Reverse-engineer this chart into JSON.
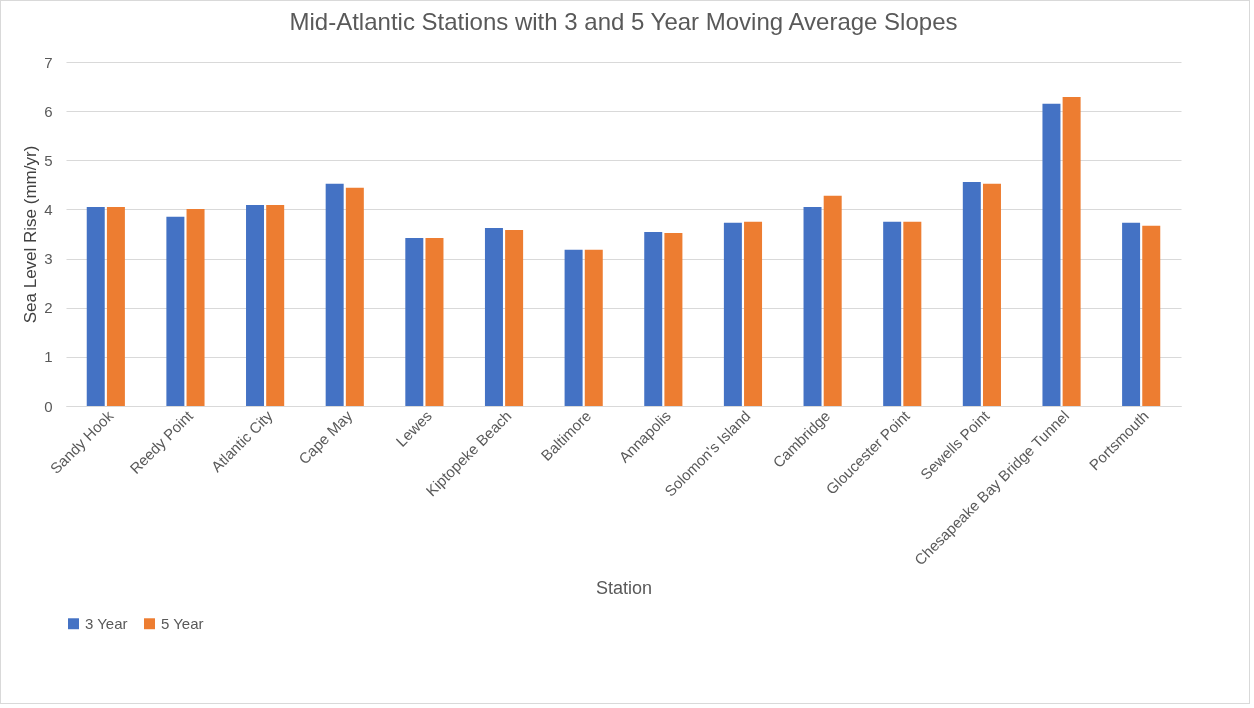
{
  "chart_data": {
    "type": "bar",
    "title": "Mid-Atlantic Stations with 3 and 5 Year Moving Average Slopes",
    "xlabel": "Station",
    "ylabel": "Sea Level Rise (mm/yr)",
    "categories": [
      "Sandy Hook",
      "Reedy Point",
      "Atlantic City",
      "Cape May",
      "Lewes",
      "Kiptopeke Beach",
      "Baltimore",
      "Annapolis",
      "Solomon's Island",
      "Cambridge",
      "Gloucester Point",
      "Sewells Point",
      "Chesapeake Bay Bridge Tunnel",
      "Portsmouth"
    ],
    "series": [
      {
        "name": "3 Year",
        "color": "#4472c4",
        "values": [
          4.05,
          3.85,
          4.09,
          4.52,
          3.42,
          3.62,
          3.18,
          3.54,
          3.73,
          4.05,
          3.75,
          4.56,
          6.15,
          3.73
        ]
      },
      {
        "name": "5 Year",
        "color": "#ed7d31",
        "values": [
          4.05,
          4.01,
          4.09,
          4.44,
          3.42,
          3.58,
          3.18,
          3.52,
          3.75,
          4.28,
          3.75,
          4.52,
          6.29,
          3.67
        ]
      }
    ],
    "ylim": [
      0,
      7
    ],
    "yticks": [
      0,
      1,
      2,
      3,
      4,
      5,
      6,
      7
    ],
    "grid": "y",
    "legend": "bottom"
  }
}
